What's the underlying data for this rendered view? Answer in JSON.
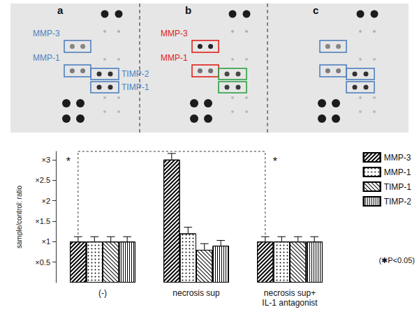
{
  "blots": {
    "panels": [
      {
        "label": "a",
        "boxes": [
          {
            "protein": "MMP-3",
            "color": "#4f81bd",
            "labelled": true
          },
          {
            "protein": "MMP-1",
            "color": "#4f81bd",
            "labelled": true
          },
          {
            "protein": "TIMP-2",
            "color": "#4f81bd",
            "labelled": true
          },
          {
            "protein": "TIMP-1",
            "color": "#4f81bd",
            "labelled": true
          }
        ]
      },
      {
        "label": "b",
        "boxes": [
          {
            "protein": "MMP-3",
            "color": "#e0201b",
            "labelled": true
          },
          {
            "protein": "MMP-1",
            "color": "#e0201b",
            "labelled": true
          },
          {
            "protein": "TIMP-2",
            "color": "#2ea043",
            "labelled": false
          },
          {
            "protein": "TIMP-1",
            "color": "#2ea043",
            "labelled": false
          }
        ]
      },
      {
        "label": "c",
        "boxes": [
          {
            "protein": "MMP-3",
            "color": "#4f81bd",
            "labelled": false
          },
          {
            "protein": "MMP-1",
            "color": "#4f81bd",
            "labelled": false
          },
          {
            "protein": "TIMP-2",
            "color": "#4f81bd",
            "labelled": false
          },
          {
            "protein": "TIMP-1",
            "color": "#4f81bd",
            "labelled": false
          }
        ]
      }
    ]
  },
  "chart_data": {
    "type": "bar",
    "y_label": "sample/control: ratio",
    "categories": [
      "(-)",
      "necrosis sup",
      "necrosis sup+\nIL-1 antagonist"
    ],
    "series": [
      {
        "name": "MMP-3",
        "color": "#000000",
        "values": [
          1,
          3.0,
          1
        ],
        "errors": [
          0.12,
          0.15,
          0.12
        ]
      },
      {
        "name": "MMP-1",
        "color": "#000000",
        "values": [
          1,
          1.2,
          1
        ],
        "errors": [
          0.12,
          0.15,
          0.12
        ]
      },
      {
        "name": "TIMP-1",
        "color": "#000000",
        "values": [
          1,
          0.8,
          1
        ],
        "errors": [
          0.12,
          0.15,
          0.12
        ]
      },
      {
        "name": "TIMP-2",
        "color": "#000000",
        "values": [
          1,
          0.9,
          1
        ],
        "errors": [
          0.12,
          0.13,
          0.12
        ]
      }
    ],
    "ylim": [
      0,
      3.2
    ],
    "yticks": [
      {
        "value": 0.5,
        "label": "×0.5"
      },
      {
        "value": 1,
        "label": "×1"
      },
      {
        "value": 1.5,
        "label": "×1.5"
      },
      {
        "value": 2,
        "label": "×2"
      },
      {
        "value": 2.5,
        "label": "×2.5"
      },
      {
        "value": 3,
        "label": "×3"
      }
    ],
    "grid": false,
    "legend": "top-right",
    "significance": {
      "text": "*",
      "series": "MMP-3",
      "categories": [
        "(-)",
        "necrosis sup+\nIL-1 antagonist"
      ]
    },
    "annotations": [
      "(✱P<0.05)"
    ]
  }
}
